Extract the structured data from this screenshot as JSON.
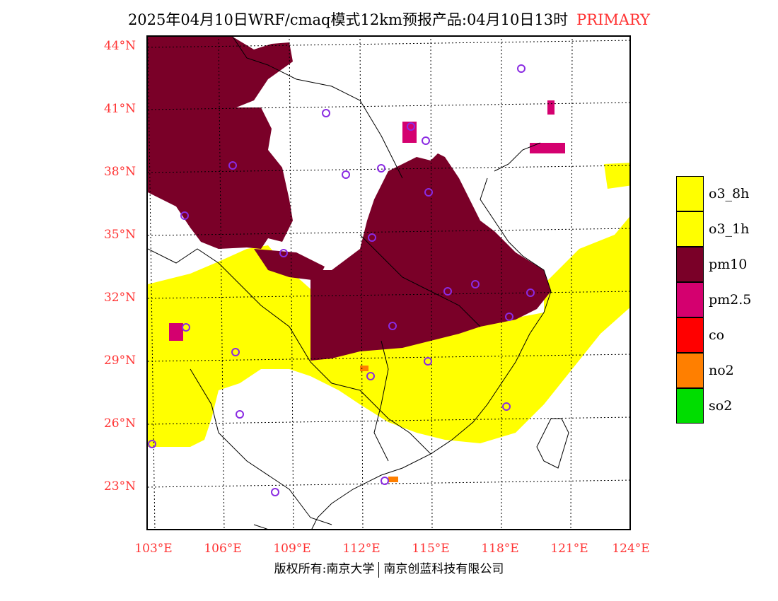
{
  "title": {
    "main": "2025年04月10日WRF/cmaq模式12km预报产品:04月10日13时",
    "tag": "PRIMARY"
  },
  "axes": {
    "lat_labels": [
      "44°N",
      "41°N",
      "38°N",
      "35°N",
      "32°N",
      "29°N",
      "26°N",
      "23°N"
    ],
    "lon_labels": [
      "103°E",
      "106°E",
      "109°E",
      "112°E",
      "115°E",
      "118°E",
      "121°E",
      "124°E"
    ]
  },
  "legend": {
    "items": [
      {
        "label": "o3_8h",
        "color": "#ffff00"
      },
      {
        "label": "o3_1h",
        "color": "#ffff00"
      },
      {
        "label": "pm10",
        "color": "#7a0028"
      },
      {
        "label": "pm2.5",
        "color": "#d4006f"
      },
      {
        "label": "co",
        "color": "#ff0000"
      },
      {
        "label": "no2",
        "color": "#ff7f00"
      },
      {
        "label": "so2",
        "color": "#00dd00"
      }
    ]
  },
  "footer": {
    "left": "版权所有:南京大学",
    "right": "南京创蓝科技有限公司"
  },
  "colors": {
    "accent": "#ff3333",
    "o3": "#ffff00",
    "pm10": "#7a0028",
    "pm25": "#d4006f",
    "no2": "#ff7f00",
    "station": "#8a2be2"
  }
}
